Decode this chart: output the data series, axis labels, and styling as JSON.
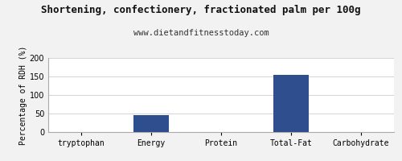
{
  "title": "Shortening, confectionery, fractionated palm per 100g",
  "subtitle": "www.dietandfitnesstoday.com",
  "categories": [
    "tryptophan",
    "Energy",
    "Protein",
    "Total-Fat",
    "Carbohydrate"
  ],
  "values": [
    0,
    46,
    0,
    155,
    0
  ],
  "bar_color": "#2e4e8e",
  "ylabel": "Percentage of RDH (%)",
  "ylim": [
    0,
    200
  ],
  "yticks": [
    0,
    50,
    100,
    150,
    200
  ],
  "background_color": "#f2f2f2",
  "plot_bg_color": "#ffffff",
  "title_fontsize": 9,
  "subtitle_fontsize": 7.5,
  "ylabel_fontsize": 7,
  "tick_fontsize": 7
}
